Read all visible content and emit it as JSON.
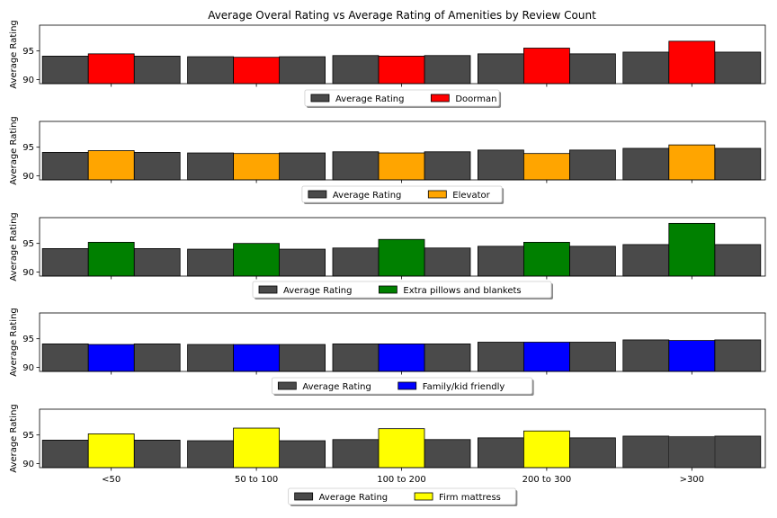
{
  "chart_data": {
    "type": "bar",
    "title": "Average Overal Rating vs Average Rating of Amenities by Review Count",
    "categories": [
      "<50",
      "50 to 100",
      "100 to 200",
      "200 to 300",
      ">300"
    ],
    "ylim": [
      89.3,
      99.5
    ],
    "yticks": [
      90,
      95
    ],
    "panels": [
      {
        "ylabel": "Average Rating",
        "series": [
          {
            "name": "Average Rating",
            "color": "#4a4a4a",
            "values": [
              94.1,
              94.0,
              94.2,
              94.5,
              94.8
            ]
          },
          {
            "name": "Doorman",
            "color": "#ff0000",
            "values": [
              94.5,
              93.9,
              94.1,
              95.5,
              96.7
            ]
          }
        ]
      },
      {
        "ylabel": "Average Rating",
        "series": [
          {
            "name": "Average Rating",
            "color": "#4a4a4a",
            "values": [
              94.1,
              94.0,
              94.2,
              94.5,
              94.8
            ]
          },
          {
            "name": "Elevator",
            "color": "#ffa500",
            "values": [
              94.4,
              93.9,
              94.0,
              93.9,
              95.4
            ]
          }
        ]
      },
      {
        "ylabel": "Average Rating",
        "series": [
          {
            "name": "Average Rating",
            "color": "#4a4a4a",
            "values": [
              94.1,
              94.0,
              94.2,
              94.5,
              94.8
            ]
          },
          {
            "name": "Extra pillows and blankets",
            "color": "#008000",
            "values": [
              95.2,
              95.0,
              95.7,
              95.2,
              98.5
            ]
          }
        ]
      },
      {
        "ylabel": "Average Rating",
        "series": [
          {
            "name": "Average Rating",
            "color": "#4a4a4a",
            "values": [
              94.1,
              94.0,
              94.1,
              94.4,
              94.8
            ]
          },
          {
            "name": "Family/kid friendly",
            "color": "#0000ff",
            "values": [
              94.0,
              94.0,
              94.1,
              94.4,
              94.7
            ]
          }
        ]
      },
      {
        "ylabel": "Average Rating",
        "series": [
          {
            "name": "Average Rating",
            "color": "#4a4a4a",
            "values": [
              94.1,
              94.0,
              94.2,
              94.5,
              94.8
            ]
          },
          {
            "name": "Firm mattress",
            "color": "#ffff00",
            "values": [
              95.2,
              96.2,
              96.1,
              95.7,
              null
            ]
          }
        ]
      }
    ]
  }
}
